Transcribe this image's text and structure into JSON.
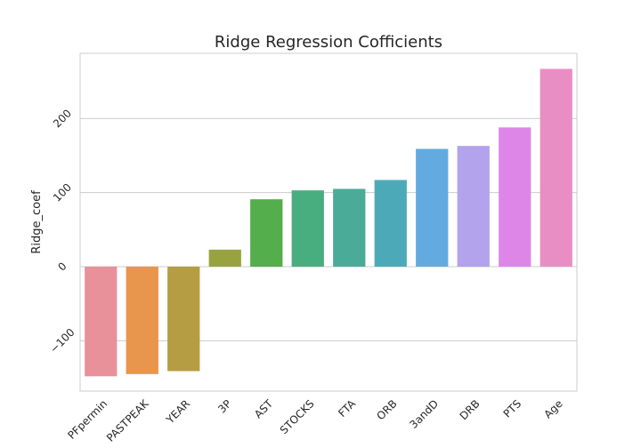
{
  "chart_data": {
    "type": "bar",
    "title": "Ridge Regression Cofficients",
    "xlabel": "",
    "ylabel": "Ridge_coef",
    "categories": [
      "PFpermin",
      "PASTPEAK",
      "YEAR",
      "3P",
      "AST",
      "STOCKS",
      "FTA",
      "ORB",
      "3andD",
      "DRB",
      "PTS",
      "Age"
    ],
    "values": [
      -148,
      -145,
      -141,
      23,
      91,
      103,
      105,
      117,
      159,
      163,
      188,
      267
    ],
    "colors": [
      "#e8919b",
      "#e8954d",
      "#b59d44",
      "#98a33f",
      "#54ae4b",
      "#49ae7f",
      "#4aab99",
      "#4caab8",
      "#63aae0",
      "#b3a3ec",
      "#de86e8",
      "#e98ec4"
    ],
    "ylim": [
      -168,
      288
    ],
    "yticks": [
      -100,
      0,
      100,
      200
    ],
    "ytick_labels": [
      "−100",
      "0",
      "100",
      "200"
    ],
    "grid": true,
    "style": "seaborn-whitegrid"
  }
}
